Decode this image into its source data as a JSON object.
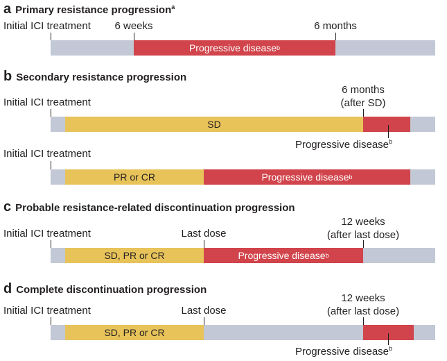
{
  "common": {
    "initial_label": "Initial ICI treatment",
    "sup_b": "b"
  },
  "panel_a": {
    "letter": "a",
    "title": "Primary resistance progression",
    "title_sup": "a",
    "tick1_label": "6 weeks",
    "tick2_label": "6 months",
    "red_label": "Progressive disease"
  },
  "panel_b": {
    "letter": "b",
    "title": "Secondary resistance progression",
    "row1_tick_line1": "6 months",
    "row1_tick_line2": "(after SD)",
    "row1_yellow_label": "SD",
    "row1_below_label": "Progressive disease",
    "row2_yellow_label": "PR or CR",
    "row2_red_label": "Progressive disease"
  },
  "panel_c": {
    "letter": "c",
    "title": "Probable resistance-related discontinuation progression",
    "tick_mid_label": "Last dose",
    "tick_right_line1": "12 weeks",
    "tick_right_line2": "(after last dose)",
    "yellow_label": "SD, PR or CR",
    "red_label": "Progressive disease"
  },
  "panel_d": {
    "letter": "d",
    "title": "Complete discontinuation progression",
    "tick_mid_label": "Last dose",
    "tick_right_line1": "12 weeks",
    "tick_right_line2": "(after last dose)",
    "yellow_label": "SD, PR or CR",
    "below_label": "Progressive disease"
  },
  "colors": {
    "bar_grey": "#c3c8d6",
    "progressive_red": "#d1444b",
    "response_yellow": "#e7c35a"
  }
}
